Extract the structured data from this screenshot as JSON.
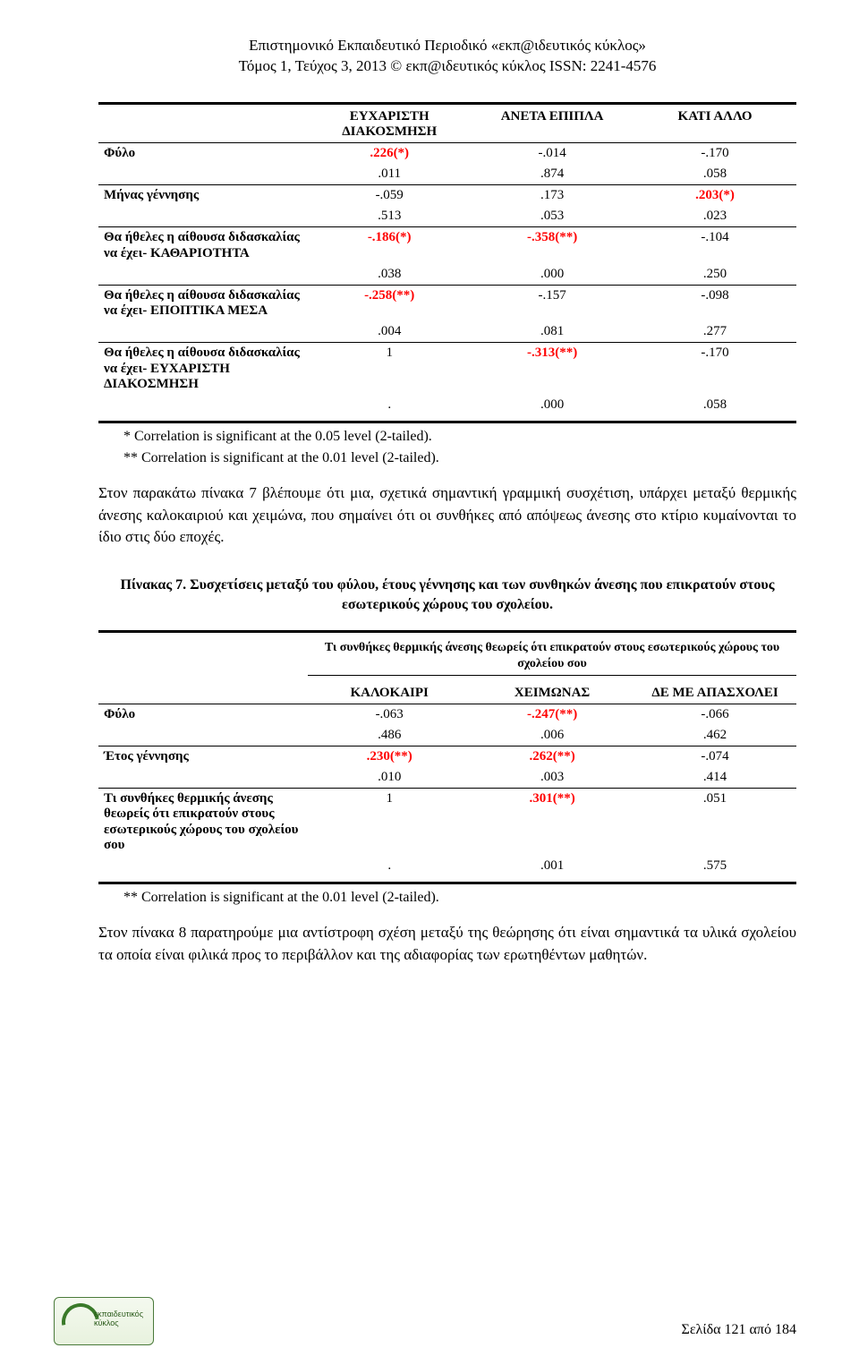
{
  "header": {
    "line1": "Επιστημονικό Εκπαιδευτικό Περιοδικό «εκπ@ιδευτικός κύκλος»",
    "line2": "Τόμος 1, Τεύχος 3, 2013 © εκπ@ιδευτικός κύκλος ISSN: 2241-4576"
  },
  "table1": {
    "col_headers": [
      "ΕΥΧΑΡΙΣΤΗ ΔΙΑΚΟΣΜΗΣΗ",
      "ΑΝΕΤΑ ΕΠΙΠΛΑ",
      "ΚΑΤΙ ΑΛΛΟ"
    ],
    "rows": [
      {
        "label": "Φύλο",
        "v1": ".226(*)",
        "v2": "-.014",
        "v3": "-.170",
        "sig1": "star"
      },
      {
        "label": "",
        "v1": ".011",
        "v2": ".874",
        "v3": ".058"
      },
      {
        "label": "Μήνας γέννησης",
        "v1": "-.059",
        "v2": ".173",
        "v3": ".203(*)",
        "sig3": "star"
      },
      {
        "label": "",
        "v1": ".513",
        "v2": ".053",
        "v3": ".023"
      },
      {
        "label": "Θα ήθελες η αίθουσα διδασκαλίας να έχει- ΚΑΘΑΡΙΟΤΗΤΑ",
        "v1": "-.186(*)",
        "v2": "-.358(**)",
        "v3": "-.104",
        "sig1": "star",
        "sig2": "dbl"
      },
      {
        "label": "",
        "v1": ".038",
        "v2": ".000",
        "v3": ".250"
      },
      {
        "label": "Θα ήθελες η αίθουσα διδασκαλίας να έχει- ΕΠΟΠΤΙΚΑ ΜΕΣΑ",
        "v1": "-.258(**)",
        "v2": "-.157",
        "v3": "-.098",
        "sig1": "dbl"
      },
      {
        "label": "",
        "v1": ".004",
        "v2": ".081",
        "v3": ".277"
      },
      {
        "label": "Θα ήθελες η αίθουσα διδασκαλίας να έχει- ΕΥΧΑΡΙΣΤΗ ΔΙΑΚΟΣΜΗΣΗ",
        "v1": "1",
        "v2": "-.313(**)",
        "v3": "-.170",
        "sig2": "dbl"
      },
      {
        "label": "",
        "v1": ".",
        "v2": ".000",
        "v3": ".058"
      }
    ]
  },
  "notes": {
    "note1": "* Correlation is significant at the 0.05 level (2-tailed).",
    "note2": "** Correlation is significant at the 0.01 level (2-tailed)."
  },
  "para1": "Στον παρακάτω πίνακα 7 βλέπουμε ότι μια,  σχετικά σημαντική γραμμική συσχέτιση, υπάρχει μεταξύ θερμικής άνεσης καλοκαιριού και χειμώνα, που σημαίνει ότι οι συνθήκες από απόψεως άνεσης στο κτίριο κυμαίνονται το ίδιο στις δύο εποχές.",
  "caption2": "Πίνακας  7. Συσχετίσεις μεταξύ του φύλου,  έτους γέννησης και των συνθηκών άνεσης που επικρατούν στους εσωτερικούς χώρους του σχολείου.",
  "subcaption2": "Τι συνθήκες θερμικής άνεσης θεωρείς ότι επικρατούν στους εσωτερικούς χώρους του σχολείου σου",
  "table2": {
    "col_headers": [
      "ΚΑΛΟΚΑΙΡΙ",
      "ΧΕΙΜΩΝΑΣ",
      "ΔΕ ΜΕ ΑΠΑΣΧΟΛΕΙ"
    ],
    "rows": [
      {
        "label": "Φύλο",
        "v1": "-.063",
        "v2": "-.247(**)",
        "v3": "-.066",
        "sig2": "dbl"
      },
      {
        "label": "",
        "v1": ".486",
        "v2": ".006",
        "v3": ".462"
      },
      {
        "label": "Έτος γέννησης",
        "v1": ".230(**)",
        "v2": ".262(**)",
        "v3": "-.074",
        "sig1": "dbl",
        "sig2": "dbl"
      },
      {
        "label": "",
        "v1": ".010",
        "v2": ".003",
        "v3": ".414"
      },
      {
        "label": "Τι συνθήκες θερμικής άνεσης θεωρείς ότι επικρατούν στους εσωτερικούς χώρους του σχολείου σου",
        "v1": "1",
        "v2": ".301(**)",
        "v3": ".051",
        "sig2": "dbl"
      },
      {
        "label": "",
        "v1": ".",
        "v2": ".001",
        "v3": ".575"
      }
    ]
  },
  "note3": "** Correlation is significant at the 0.01 level (2-tailed).",
  "para2": "Στον πίνακα 8 παρατηρούμε μια αντίστροφη σχέση μεταξύ της θεώρησης ότι είναι σημαντικά τα υλικά σχολείου τα οποία είναι φιλικά προς το περιβάλλον και της αδιαφορίας των ερωτηθέντων μαθητών.",
  "footer": "Σελίδα 121 από 184",
  "logo": {
    "line1": "εκπαιδευτικός",
    "line2": "κύκλος"
  },
  "colors": {
    "sig": "#ff0000",
    "text": "#000000",
    "bg": "#ffffff"
  }
}
